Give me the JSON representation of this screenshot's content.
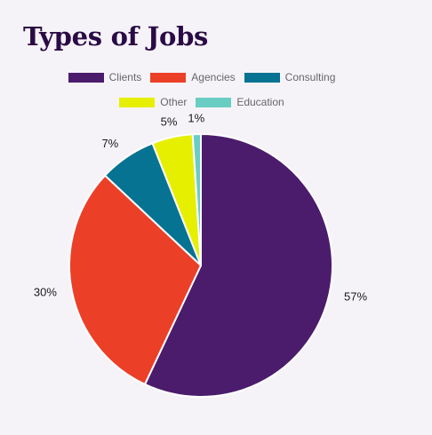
{
  "chart_data": {
    "type": "pie",
    "title": "Types of Jobs",
    "legend_position": "top",
    "slices": [
      {
        "label": "Clients",
        "value": 57,
        "display": "57%",
        "color": "#4b1c6c"
      },
      {
        "label": "Agencies",
        "value": 30,
        "display": "30%",
        "color": "#ec3f28"
      },
      {
        "label": "Consulting",
        "value": 7,
        "display": "7%",
        "color": "#077392"
      },
      {
        "label": "Other",
        "value": 5,
        "display": "5%",
        "color": "#e6ef00"
      },
      {
        "label": "Education",
        "value": 1,
        "display": "1%",
        "color": "#6acdc4"
      }
    ]
  }
}
